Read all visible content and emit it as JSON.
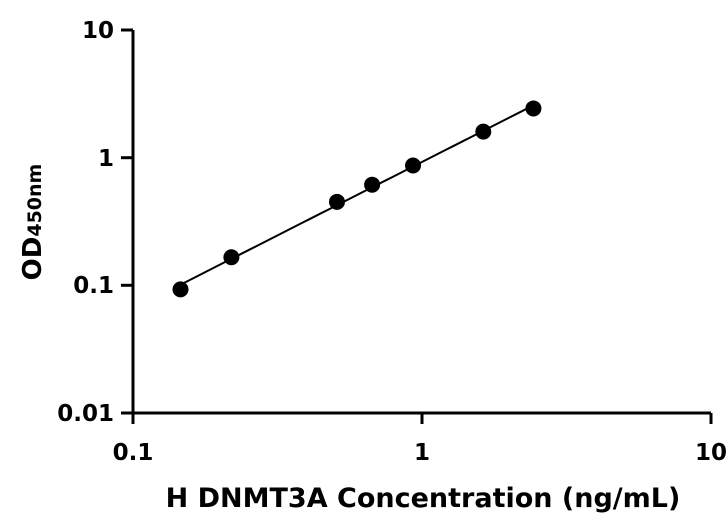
{
  "chart_data": {
    "type": "scatter",
    "xscale": "log",
    "yscale": "log",
    "xlim": [
      0.1,
      10
    ],
    "ylim": [
      0.01,
      10
    ],
    "xticks": [
      "0.1",
      "1",
      "10"
    ],
    "yticks": [
      "0.01",
      "0.1",
      "1",
      "10"
    ],
    "xlabel": "H DNMT3A Concentration (ng/mL)",
    "ylabel_main": "OD",
    "ylabel_sub": "450nm",
    "grid": false,
    "fit_curve": true,
    "point_color": "#000000",
    "series": [
      {
        "x": [
          0.146,
          0.219,
          0.508,
          0.672,
          0.931,
          1.63,
          2.43
        ],
        "y": [
          0.093,
          0.166,
          0.451,
          0.614,
          0.868,
          1.6,
          2.43
        ]
      }
    ]
  }
}
